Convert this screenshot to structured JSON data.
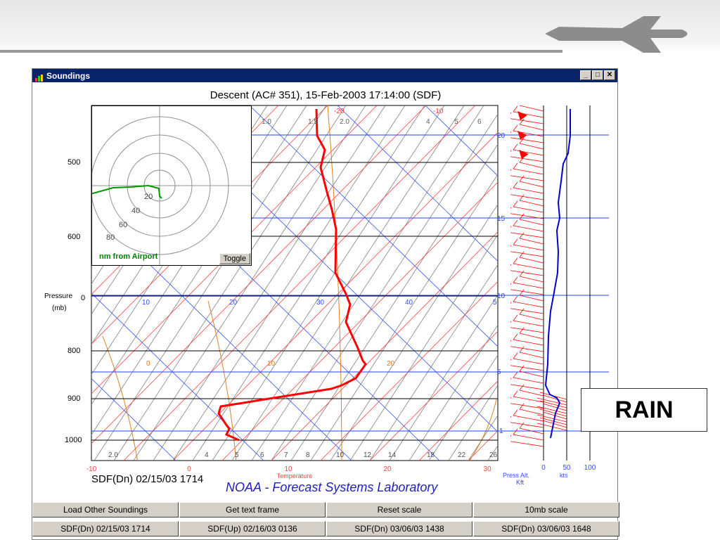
{
  "window": {
    "title": "Soundings"
  },
  "window_buttons": [
    "_",
    "□",
    "✕"
  ],
  "plot": {
    "title": "Descent (AC# 351), 15-Feb-2003 17:14:00 (SDF)",
    "pressure_label_1": "Pressure",
    "pressure_label_2": "(mb)",
    "pressure_ticks": [
      "500",
      "600",
      "0",
      "800",
      "900",
      "1000"
    ],
    "temp_label": "Temperature",
    "temp_ticks": [
      "-10",
      "0",
      "10",
      "20",
      "30"
    ],
    "top_red": [
      "-20",
      "-10"
    ],
    "top_blue": [
      "1.0",
      "1.5",
      "2.0",
      "4",
      "5",
      "6"
    ],
    "blue_axis": [
      "10",
      "20",
      "30",
      "40",
      "5"
    ],
    "orange_axis": [
      "0",
      "10",
      "20"
    ],
    "bottom_mixing": [
      "2.0",
      "4",
      "5",
      "6",
      "7",
      "8",
      "10",
      "12",
      "14",
      "18",
      "22",
      "26"
    ],
    "footer_left": "SDF(Dn) 02/15/03 1714",
    "footer_center": "NOAA - Forecast Systems Laboratory"
  },
  "inset": {
    "ring_labels": [
      "20",
      "40",
      "60",
      "80"
    ],
    "caption": "nm from Airport",
    "toggle_label": "Toggle"
  },
  "wind_panel": {
    "alt_ticks": [
      "20",
      "15",
      "10",
      "5",
      "1"
    ],
    "x_ticks": [
      "0",
      "50",
      "100"
    ],
    "label_press_alt": "Press Alt.",
    "label_kft": "Kft",
    "label_kts": "kts"
  },
  "buttons_row1": [
    "Load Other Soundings",
    "Get text frame",
    "Reset scale",
    "10mb scale"
  ],
  "buttons_row2": [
    "SDF(Dn) 02/15/03 1714",
    "SDF(Up) 02/16/03 0136",
    "SDF(Dn) 03/06/03 1438",
    "SDF(Dn) 03/06/03 1648"
  ],
  "callout": "RAIN",
  "colors": {
    "temp": "#ff0000",
    "wind_speed": "#0000cc",
    "track": "#009900",
    "isotherm": "#ff4040",
    "adiabat": "#3050ff",
    "moist": "#e08020"
  }
}
